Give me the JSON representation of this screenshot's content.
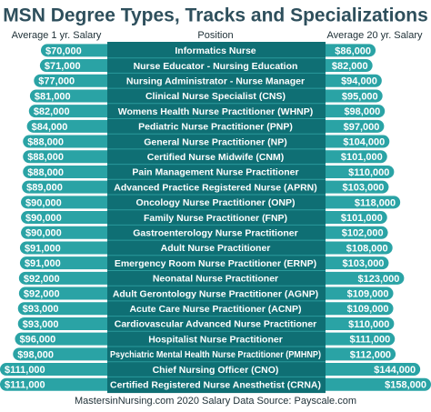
{
  "chart_data": {
    "type": "diverging-bar",
    "title": "MSN Degree Types, Tracks and Specializations",
    "category_label": "Position",
    "categories": [
      "Informatics Nurse",
      "Nurse Educator - Nursing Education",
      "Nursing Administrator - Nurse Manager",
      "Clinical Nurse Specialist (CNS)",
      "Womens Health Nurse Practitioner (WHNP)",
      "Pediatric Nurse Practitioner (PNP)",
      "General Nurse Practitioner (NP)",
      "Certified Nurse Midwife (CNM)",
      "Pain Management Nurse Practitioner",
      "Advanced Practice Registered Nurse (APRN)",
      "Oncology Nurse Practitioner (ONP)",
      "Family Nurse Practitioner (FNP)",
      "Gastroenterology Nurse Practitioner",
      "Adult Nurse Practitioner",
      "Emergency Room Nurse Practitioner (ERNP)",
      "Neonatal Nurse Practitioner",
      "Adult Gerontology Nurse Practitioner (AGNP)",
      "Acute Care Nurse Practitioner (ACNP)",
      "Cardiovascular Advanced Nurse Practitioner",
      "Hospitalist Nurse Practitioner",
      "Psychiatric Mental Health Nurse Practitioner (PMHNP)",
      "Chief Nursing Officer (CNO)",
      "Certified Registered Nurse Anesthetist (CRNA)"
    ],
    "xlim": [
      -105000,
      111000
    ],
    "x2lim": [
      -122000,
      158000
    ],
    "series": [
      {
        "name": "Average 1 yr. Salary",
        "color": "#2aa3a5",
        "values": [
          70000,
          71000,
          77000,
          81000,
          82000,
          84000,
          88000,
          88000,
          88000,
          89000,
          90000,
          90000,
          90000,
          91000,
          91000,
          92000,
          92000,
          93000,
          93000,
          96000,
          98000,
          111000,
          111000
        ],
        "value_labels": [
          "$70,000",
          "$71,000",
          "$77,000",
          "$81,000",
          "$82,000",
          "$84,000",
          "$88,000",
          "$88,000",
          "$88,000",
          "$89,000",
          "$90,000",
          "$90,000",
          "$90,000",
          "$91,000",
          "$91,000",
          "$92,000",
          "$92,000",
          "$93,000",
          "$93,000",
          "$96,000",
          "$98,000",
          "$111,000",
          "$111,000"
        ]
      },
      {
        "name": "Average 20 yr. Salary",
        "color": "#2aa3a5",
        "axis": "x2",
        "values": [
          86000,
          82000,
          94000,
          95000,
          98000,
          97000,
          104000,
          101000,
          110000,
          103000,
          118000,
          101000,
          102000,
          108000,
          103000,
          123000,
          109000,
          109000,
          110000,
          111000,
          112000,
          144000,
          158000
        ],
        "value_labels": [
          "$86,000",
          "$82,000",
          "$94,000",
          "$95,000",
          "$98,000",
          "$97,000",
          "$104,000",
          "$101,000",
          "$110,000",
          "$103,000",
          "$118,000",
          "$101,000",
          "$102,000",
          "$108,000",
          "$103,000",
          "$123,000",
          "$109,000",
          "$109,000",
          "$110,000",
          "$111,000",
          "$112,000",
          "$144,000",
          "$158,000"
        ]
      }
    ],
    "source": "MastersinNursing.com 2020 Salary Data Source: Payscale.com"
  }
}
